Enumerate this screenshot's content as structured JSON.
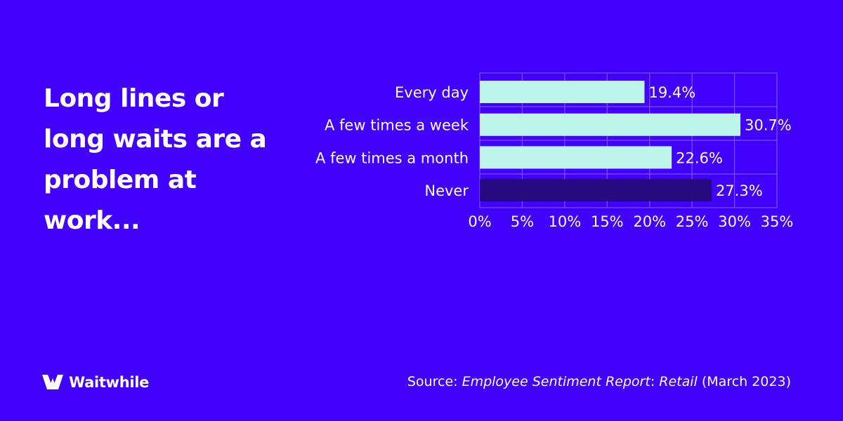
{
  "headline": "Long lines or long waits are a problem at work...",
  "brand": {
    "name": "Waitwhile",
    "icon": "waitwhile-logo-icon"
  },
  "source": {
    "prefix": "Source: ",
    "report_title": "Employee Sentiment Report",
    "separator": ": ",
    "report_subtitle": "Retail",
    "date": " (March 2023)"
  },
  "colors": {
    "background": "#4200FF",
    "bar_primary": "#BDF5EA",
    "bar_highlight": "#260A80",
    "grid": "#7A55FF"
  },
  "chart_data": {
    "type": "bar",
    "orientation": "horizontal",
    "categories": [
      "Every day",
      "A few times a week",
      "A few times a month",
      "Never"
    ],
    "values": [
      19.4,
      30.7,
      22.6,
      27.3
    ],
    "value_labels": [
      "19.4%",
      "30.7%",
      "22.6%",
      "27.3%"
    ],
    "highlighted": [
      false,
      false,
      false,
      true
    ],
    "xlim": [
      0,
      35
    ],
    "xticks": [
      0,
      5,
      10,
      15,
      20,
      25,
      30,
      35
    ],
    "xtick_labels": [
      "0%",
      "5%",
      "10%",
      "15%",
      "20%",
      "25%",
      "30%",
      "35%"
    ],
    "grid": true,
    "title": "",
    "xlabel": "",
    "ylabel": ""
  }
}
